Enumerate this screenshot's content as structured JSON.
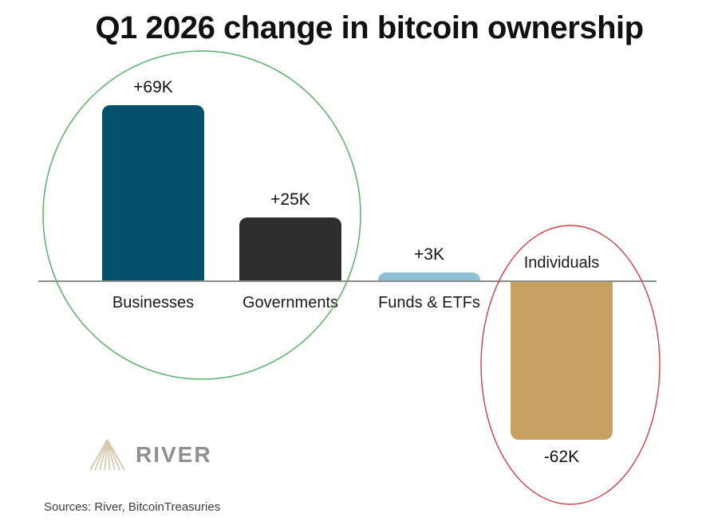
{
  "chart_data": {
    "type": "bar",
    "title": "Q1 2026 change in bitcoin ownership",
    "xlabel": "",
    "ylabel": "",
    "unit": "thousand BTC",
    "grid": false,
    "categories": [
      "Businesses",
      "Governments",
      "Funds & ETFs",
      "Individuals"
    ],
    "values": [
      69,
      25,
      3,
      -62
    ],
    "bars": [
      {
        "category": "Businesses",
        "value": 69,
        "value_label": "+69K",
        "color": "#05506b",
        "category_label_position": "below-axis"
      },
      {
        "category": "Governments",
        "value": 25,
        "value_label": "+25K",
        "color": "#2e2e2e",
        "category_label_position": "below-axis"
      },
      {
        "category": "Funds & ETFs",
        "value": 3,
        "value_label": "+3K",
        "color": "#8cc0d5",
        "category_label_position": "below-axis"
      },
      {
        "category": "Individuals",
        "value": -62,
        "value_label": "-62K",
        "color": "#c6a161",
        "category_label_position": "above-axis"
      }
    ],
    "annotations": [
      {
        "shape": "ellipse",
        "color": "#58b168",
        "around": [
          "Businesses",
          "Governments"
        ]
      },
      {
        "shape": "ellipse",
        "color": "#d23f44",
        "around": [
          "Individuals"
        ]
      }
    ],
    "axis": {
      "baseline_value": 0,
      "baseline_color": "#8c8c8c"
    }
  },
  "footer": {
    "logo_text": "RIVER",
    "logo_icon": "river-fan-icon",
    "logo_icon_color": "#d7c9ad",
    "logo_text_color": "#8f8f8f",
    "sources": "Sources: River, BitcoinTreasuries"
  }
}
